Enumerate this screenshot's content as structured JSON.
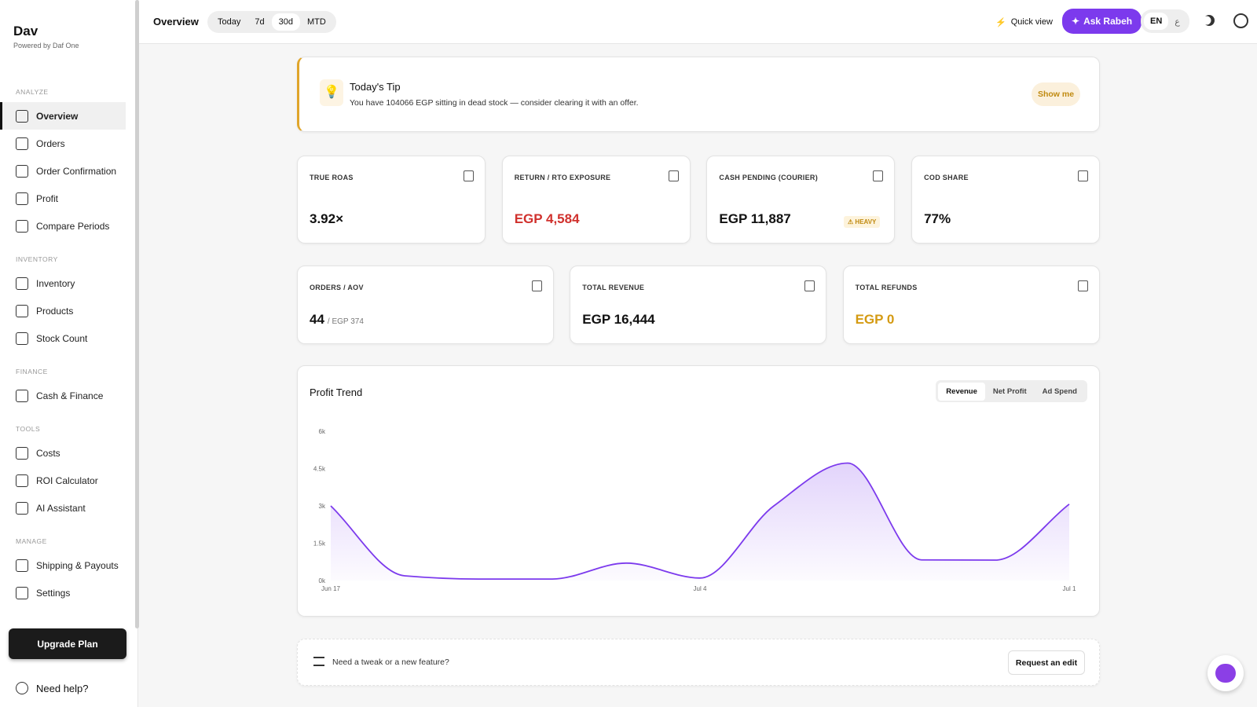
{
  "sidebar": {
    "brand": "Dav",
    "powered": "Powered by Daf One",
    "sections": [
      {
        "title": "ANALYZE",
        "items": [
          "Overview",
          "Orders",
          "Order Confirmation",
          "Profit",
          "Compare Periods"
        ]
      },
      {
        "title": "INVENTORY",
        "items": [
          "Inventory",
          "Products",
          "Stock Count"
        ]
      },
      {
        "title": "FINANCE",
        "items": [
          "Cash & Finance"
        ]
      },
      {
        "title": "TOOLS",
        "items": [
          "Costs",
          "ROI Calculator",
          "AI Assistant"
        ]
      },
      {
        "title": "MANAGE",
        "items": [
          "Shipping & Payouts",
          "Settings"
        ]
      }
    ],
    "upgrade": "Upgrade Plan",
    "help": "Need help?"
  },
  "topbar": {
    "title": "Overview",
    "ranges": [
      "Today",
      "7d",
      "30d",
      "MTD"
    ],
    "quick_view": "Quick view",
    "ask": "Ask Rabeh",
    "languages": [
      "EN",
      "ع"
    ]
  },
  "tip": {
    "title": "Today's Tip",
    "text": "You have 104066 EGP sitting in dead stock — consider clearing it with an offer.",
    "button": "Show me"
  },
  "kpis": [
    {
      "label": "TRUE ROAS",
      "value": "3.92×"
    },
    {
      "label": "RETURN / RTO EXPOSURE",
      "value": "EGP 4,584"
    },
    {
      "label": "CASH PENDING (COURIER)",
      "value": "EGP 11,887",
      "badge": "HEAVY"
    },
    {
      "label": "COD SHARE",
      "value": "77%"
    }
  ],
  "kpis2": [
    {
      "label": "ORDERS / AOV",
      "value": "44",
      "sub": "/ EGP 374"
    },
    {
      "label": "TOTAL REVENUE",
      "value": "EGP 16,444"
    },
    {
      "label": "TOTAL REFUNDS",
      "value": "EGP 0"
    }
  ],
  "chart_data": {
    "type": "line",
    "title": "Profit Trend",
    "tabs": [
      "Revenue",
      "Net Profit",
      "Ad Spend"
    ],
    "categories": [
      "Jun 17",
      null,
      null,
      null,
      null,
      "Jul 4",
      null,
      null,
      null,
      null,
      "Jul 1"
    ],
    "series": [
      {
        "color": "#7c3aed",
        "values": [
          3000,
          190,
          60,
          60,
          700,
          100,
          3000,
          4720,
          830,
          820,
          3070
        ]
      }
    ],
    "ylim": [
      0,
      6000
    ],
    "yticks": [
      {
        "value": 0,
        "label": "0k"
      },
      {
        "value": 1500,
        "label": "1.5k"
      },
      {
        "value": 3000,
        "label": "3k"
      },
      {
        "value": 4500,
        "label": "4.5k"
      },
      {
        "value": 6000,
        "label": "6k"
      }
    ]
  },
  "footer": {
    "text": "Need a tweak or a new feature?",
    "button": "Request an edit"
  }
}
